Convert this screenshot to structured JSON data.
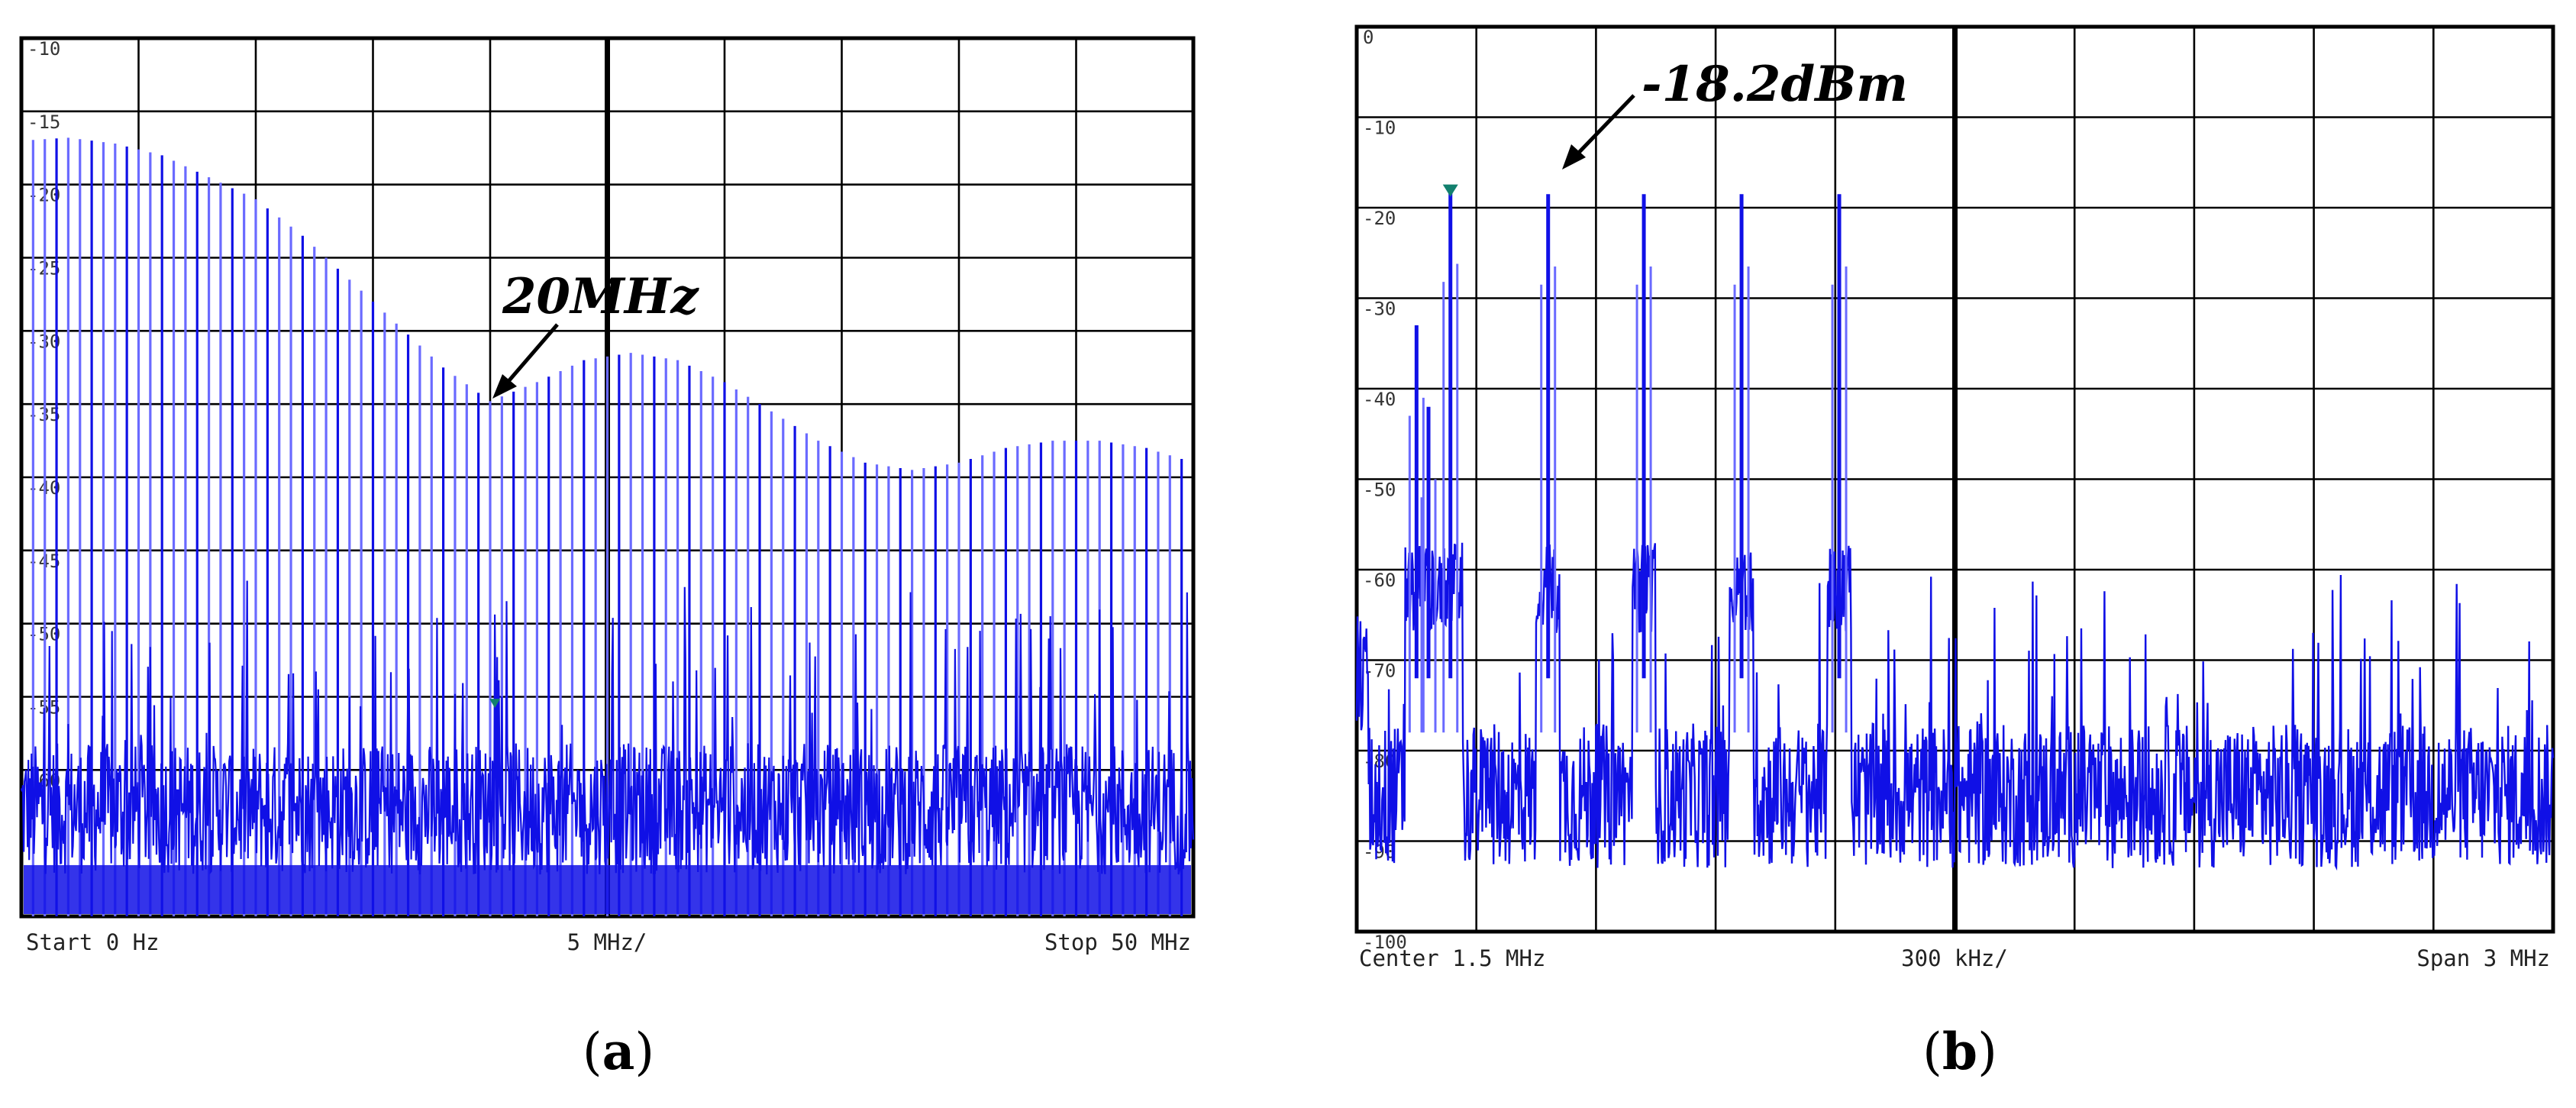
{
  "colors": {
    "trace": "#1010e6",
    "trace_light": "#6a6aff",
    "marker": "#12806e",
    "grid": "#000000"
  },
  "chart_data": [
    {
      "type": "line",
      "panel": "(a)",
      "caption_letter": "a",
      "title": "",
      "xlabel": "",
      "ylabel": "",
      "x_unit": "MHz",
      "xlim": [
        0,
        50
      ],
      "ylim": [
        -70,
        -10
      ],
      "y_ticks": [
        -10,
        -15,
        -20,
        -25,
        -30,
        -35,
        -40,
        -45,
        -50,
        -55,
        -60
      ],
      "y_tick_labels": [
        "-10",
        "-15",
        "-20",
        "-25",
        "-30",
        "-35",
        "-40",
        "-45",
        "-50",
        "-55",
        "-60"
      ],
      "footer": {
        "left": "Start 0 Hz",
        "center": "5 MHz/",
        "right": "Stop 50 MHz"
      },
      "harmonic_spacing_mhz": 0.5,
      "noise_floor_dbm": -64,
      "envelope": {
        "x": [
          0,
          2,
          4,
          6,
          8,
          10,
          12,
          14,
          16,
          18,
          20,
          22,
          24,
          26,
          28,
          30,
          32,
          34,
          36,
          38,
          40,
          42,
          44,
          46,
          48,
          50
        ],
        "y": [
          -17,
          -16.8,
          -17.2,
          -18,
          -19.5,
          -21,
          -23.5,
          -26.5,
          -29.5,
          -32.5,
          -34.8,
          -33.5,
          -32,
          -31.5,
          -32,
          -33.5,
          -35.5,
          -37.5,
          -39,
          -39.5,
          -39,
          -38,
          -37.5,
          -37.5,
          -38,
          -39
        ]
      },
      "marker": {
        "x": 20.2,
        "y": -55.5
      },
      "annotation": {
        "text": "20MHz",
        "x": 20,
        "y": -34.8
      }
    },
    {
      "type": "line",
      "panel": "(b)",
      "caption_letter": "b",
      "title": "",
      "xlabel": "",
      "ylabel": "",
      "x_unit": "MHz",
      "xlim": [
        0,
        3
      ],
      "ylim": [
        -100,
        0
      ],
      "y_ticks": [
        0,
        -10,
        -20,
        -30,
        -40,
        -50,
        -60,
        -70,
        -80,
        -90,
        -100
      ],
      "y_tick_labels": [
        "0",
        "-10",
        "-20",
        "-30",
        "-40",
        "-50",
        "-60",
        "-70",
        "-80",
        "-90",
        "-100"
      ],
      "footer": {
        "left": "Center 1.5 MHz",
        "center": "300 kHz/",
        "right": "Span 3 MHz"
      },
      "noise_floor_dbm": -85,
      "peaks": [
        {
          "x": 0.15,
          "y": -33
        },
        {
          "x": 0.18,
          "y": -42
        },
        {
          "x": 0.235,
          "y": -18.2
        },
        {
          "x": 0.48,
          "y": -18.5
        },
        {
          "x": 0.72,
          "y": -18.5
        },
        {
          "x": 0.965,
          "y": -18.5
        },
        {
          "x": 1.21,
          "y": -18.5
        }
      ],
      "marker": {
        "x": 0.235,
        "y": -18.2
      },
      "annotation": {
        "text": "-18.2dBm",
        "x": 0.235,
        "y": -18.2
      }
    }
  ]
}
